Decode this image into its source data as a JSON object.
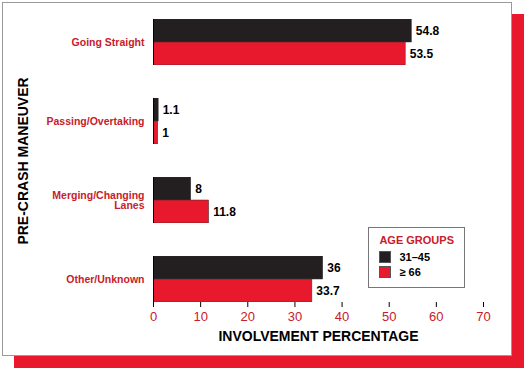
{
  "chart_data": {
    "type": "bar",
    "orientation": "horizontal",
    "categories": [
      "Going Straight",
      "Passing/Overtaking",
      "Merging/Changing Lanes",
      "Other/Unknown"
    ],
    "series": [
      {
        "name": "31–45",
        "color": "#231f20",
        "values": [
          54.8,
          1.1,
          8,
          36
        ]
      },
      {
        "name": "≥ 66",
        "color": "#e8192c",
        "values": [
          53.5,
          1,
          11.8,
          33.7
        ]
      }
    ],
    "xlabel": "INVOLVEMENT PERCENTAGE",
    "ylabel": "PRE-CRASH MANEUVER",
    "xlim": [
      0,
      70
    ],
    "xticks": [
      0,
      10,
      20,
      30,
      40,
      50,
      60,
      70
    ],
    "legend_title": "AGE GROUPS",
    "legend": "lower right",
    "data_labels": true,
    "grid": false
  }
}
